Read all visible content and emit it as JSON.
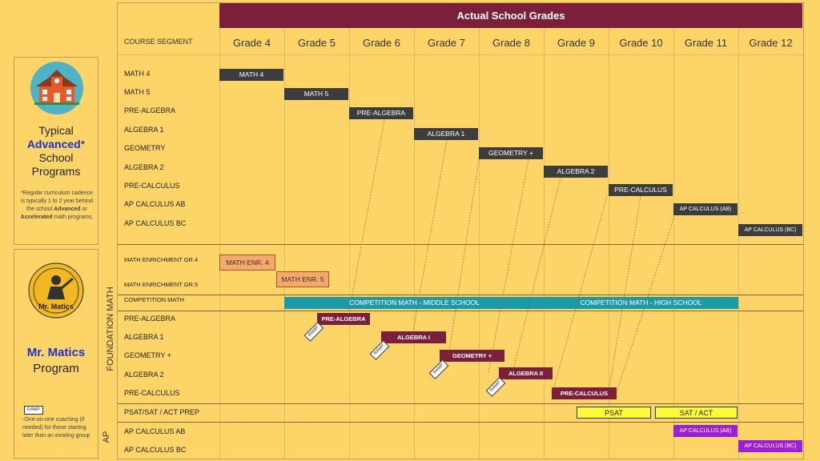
{
  "header": {
    "title": "Actual School Grades",
    "segment_label": "COURSE SEGMENT"
  },
  "grades": [
    "Grade 4",
    "Grade 5",
    "Grade 6",
    "Grade 7",
    "Grade 8",
    "Grade 9",
    "Grade 10",
    "Grade 11",
    "Grade 12"
  ],
  "typical": {
    "line1": "Typical",
    "advanced": "Advanced",
    "asterisk": "*",
    "line3": "School",
    "line4": "Programs",
    "note_a": "*Regular curriculum cadence is typically 1 to 2 year behind the school ",
    "note_adv": "Advanced",
    "note_or": " or ",
    "note_acc": "Accelerated",
    "note_b": " math programs."
  },
  "mrmatics": {
    "logo_text": "Mr. Matics",
    "title": "Mr. Matics",
    "subtitle": "Program",
    "ramp_tag": "RAMP",
    "note": "-One-on-one coaching (if needed) for those starting later than an existing group"
  },
  "side_labels": {
    "foundation": "FOUNDATION MATH",
    "ap": "AP"
  },
  "rows_top": [
    "MATH 4",
    "MATH 5",
    "PRE-ALGEBRA",
    "ALGEBRA 1",
    "GEOMETRY",
    "ALGEBRA 2",
    "PRE-CALCULUS",
    "AP CALCULUS AB",
    "AP CALCULUS BC"
  ],
  "rows_enrich": [
    "MATH ENRICHMENT GR.4",
    "MATH ENRICHMENT GR.5",
    "COMPETITION MATH"
  ],
  "rows_found": [
    "PRE-ALGEBRA",
    "ALGEBRA 1",
    "GEOMETRY +",
    "ALGEBRA 2",
    "PRE-CALCULUS"
  ],
  "row_prep": "PSAT/SAT / ACT PREP",
  "rows_ap": [
    "AP CALCULUS AB",
    "AP CALCULUS BC"
  ],
  "bars_top": [
    "MATH 4",
    "MATH 5",
    "PRE-ALGEBRA",
    "ALGEBRA 1",
    "GEOMETRY +",
    "ALGEBRA 2",
    "PRE-CALCULUS",
    "AP CALCULUS (AB)",
    "AP CALCULUS (BC)"
  ],
  "bars_enrich": [
    "MATH ENR. 4",
    "MATH ENR. 5"
  ],
  "competition": {
    "middle": "COMPETITION MATH   -   MIDDLE SCHOOL",
    "high": "COMPETITION MATH   -   HIGH SCHOOL"
  },
  "bars_found": [
    "PRE-ALGEBRA",
    "ALGEBRA I",
    "GEOMETRY +",
    "ALGEBRA II",
    "PRE-CALCULUS"
  ],
  "ramp_tags": [
    "RAMP",
    "RAMP",
    "RAMP",
    "RAMP"
  ],
  "bars_prep": [
    "PSAT",
    "SAT / ACT"
  ],
  "bars_ap": [
    "AP CALCULUS (AB)",
    "AP CALCULUS (BC)"
  ],
  "colors": {
    "header": "#7b1f3c",
    "dark_bar": "#3d3d3d",
    "maroon_bar": "#7b1f3c",
    "teal_bar": "#1d9aa8",
    "yellow_bar": "#fbfb3a",
    "purple_bar": "#9b1fd6",
    "orange_bar": "#f6a86b",
    "background": "#fcd468"
  }
}
